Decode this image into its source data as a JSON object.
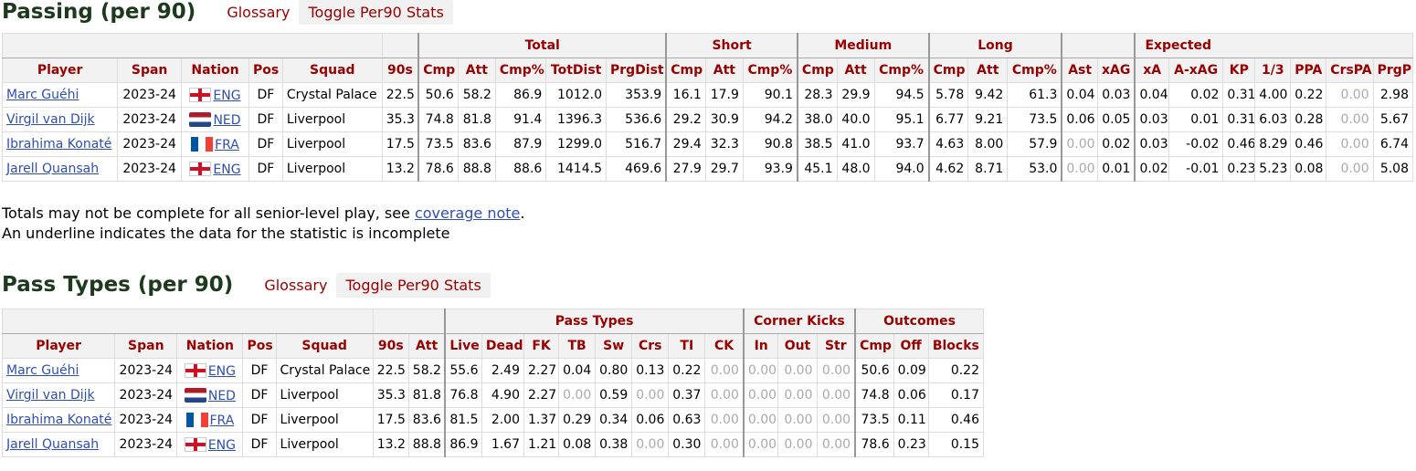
{
  "passing": {
    "title": "Passing (per 90)",
    "glossary": "Glossary",
    "toggle": "Toggle Per90 Stats",
    "groups": {
      "total": "Total",
      "short": "Short",
      "medium": "Medium",
      "long": "Long",
      "expected": "Expected"
    },
    "headers": [
      "Player",
      "Span",
      "Nation",
      "Pos",
      "Squad",
      "90s",
      "Cmp",
      "Att",
      "Cmp%",
      "TotDist",
      "PrgDist",
      "Cmp",
      "Att",
      "Cmp%",
      "Cmp",
      "Att",
      "Cmp%",
      "Cmp",
      "Att",
      "Cmp%",
      "Ast",
      "xAG",
      "xA",
      "A-xAG",
      "KP",
      "1/3",
      "PPA",
      "CrsPA",
      "PrgP"
    ],
    "rows": [
      {
        "player": "Marc Guéhi",
        "span": "2023-24",
        "flag": "eng",
        "nation": "ENG",
        "pos": "DF",
        "squad": "Crystal Palace",
        "n90s": "22.5",
        "stats": [
          "50.6",
          "58.2",
          "86.9",
          "1012.0",
          "353.9",
          "16.1",
          "17.9",
          "90.1",
          "28.3",
          "29.9",
          "94.5",
          "5.78",
          "9.42",
          "61.3",
          "0.04",
          "0.03",
          "0.04",
          "0.02",
          "0.31",
          "4.00",
          "0.22",
          "0.00",
          "2.98"
        ]
      },
      {
        "player": "Virgil van Dijk",
        "span": "2023-24",
        "flag": "ned",
        "nation": "NED",
        "pos": "DF",
        "squad": "Liverpool",
        "n90s": "35.3",
        "stats": [
          "74.8",
          "81.8",
          "91.4",
          "1396.3",
          "536.6",
          "29.2",
          "30.9",
          "94.2",
          "38.0",
          "40.0",
          "95.1",
          "6.77",
          "9.21",
          "73.5",
          "0.06",
          "0.05",
          "0.03",
          "0.01",
          "0.31",
          "6.03",
          "0.28",
          "0.00",
          "5.67"
        ]
      },
      {
        "player": "Ibrahima Konaté",
        "span": "2023-24",
        "flag": "fra",
        "nation": "FRA",
        "pos": "DF",
        "squad": "Liverpool",
        "n90s": "17.5",
        "stats": [
          "73.5",
          "83.6",
          "87.9",
          "1299.0",
          "516.7",
          "29.4",
          "32.3",
          "90.8",
          "38.5",
          "41.0",
          "93.7",
          "4.63",
          "8.00",
          "57.9",
          "0.00",
          "0.02",
          "0.03",
          "-0.02",
          "0.46",
          "8.29",
          "0.46",
          "0.00",
          "6.74"
        ]
      },
      {
        "player": "Jarell Quansah",
        "span": "2023-24",
        "flag": "eng",
        "nation": "ENG",
        "pos": "DF",
        "squad": "Liverpool",
        "n90s": "13.2",
        "stats": [
          "78.6",
          "88.8",
          "88.6",
          "1414.5",
          "469.6",
          "27.9",
          "29.7",
          "93.9",
          "45.1",
          "48.0",
          "94.0",
          "4.62",
          "8.71",
          "53.0",
          "0.00",
          "0.01",
          "0.02",
          "-0.01",
          "0.23",
          "5.23",
          "0.08",
          "0.00",
          "5.08"
        ]
      }
    ]
  },
  "notes": {
    "line1_prefix": "Totals may not be complete for all senior-level play, see ",
    "line1_link": "coverage note",
    "line1_suffix": ".",
    "line2": "An underline indicates the data for the statistic is incomplete"
  },
  "pass_types": {
    "title": "Pass Types (per 90)",
    "glossary": "Glossary",
    "toggle": "Toggle Per90 Stats",
    "groups": {
      "pass_types": "Pass Types",
      "corner_kicks": "Corner Kicks",
      "outcomes": "Outcomes"
    },
    "headers": [
      "Player",
      "Span",
      "Nation",
      "Pos",
      "Squad",
      "90s",
      "Att",
      "Live",
      "Dead",
      "FK",
      "TB",
      "Sw",
      "Crs",
      "TI",
      "CK",
      "In",
      "Out",
      "Str",
      "Cmp",
      "Off",
      "Blocks"
    ],
    "rows": [
      {
        "player": "Marc Guéhi",
        "span": "2023-24",
        "flag": "eng",
        "nation": "ENG",
        "pos": "DF",
        "squad": "Crystal Palace",
        "n90s": "22.5",
        "stats": [
          "58.2",
          "55.6",
          "2.49",
          "2.27",
          "0.04",
          "0.80",
          "0.13",
          "0.22",
          "0.00",
          "0.00",
          "0.00",
          "0.00",
          "50.6",
          "0.09",
          "0.22"
        ]
      },
      {
        "player": "Virgil van Dijk",
        "span": "2023-24",
        "flag": "ned",
        "nation": "NED",
        "pos": "DF",
        "squad": "Liverpool",
        "n90s": "35.3",
        "stats": [
          "81.8",
          "76.8",
          "4.90",
          "2.27",
          "0.00",
          "0.59",
          "0.00",
          "0.37",
          "0.00",
          "0.00",
          "0.00",
          "0.00",
          "74.8",
          "0.06",
          "0.17"
        ]
      },
      {
        "player": "Ibrahima Konaté",
        "span": "2023-24",
        "flag": "fra",
        "nation": "FRA",
        "pos": "DF",
        "squad": "Liverpool",
        "n90s": "17.5",
        "stats": [
          "83.6",
          "81.5",
          "2.00",
          "1.37",
          "0.29",
          "0.34",
          "0.06",
          "0.63",
          "0.00",
          "0.00",
          "0.00",
          "0.00",
          "73.5",
          "0.11",
          "0.46"
        ]
      },
      {
        "player": "Jarell Quansah",
        "span": "2023-24",
        "flag": "eng",
        "nation": "ENG",
        "pos": "DF",
        "squad": "Liverpool",
        "n90s": "13.2",
        "stats": [
          "88.8",
          "86.9",
          "1.67",
          "1.21",
          "0.08",
          "0.38",
          "0.00",
          "0.30",
          "0.00",
          "0.00",
          "0.00",
          "0.00",
          "78.6",
          "0.23",
          "0.15"
        ]
      }
    ]
  },
  "colors": {
    "header_text": "#990000",
    "link": "#2f4fb0",
    "title": "#1e3a1e",
    "zero": "#aaaaaa"
  }
}
